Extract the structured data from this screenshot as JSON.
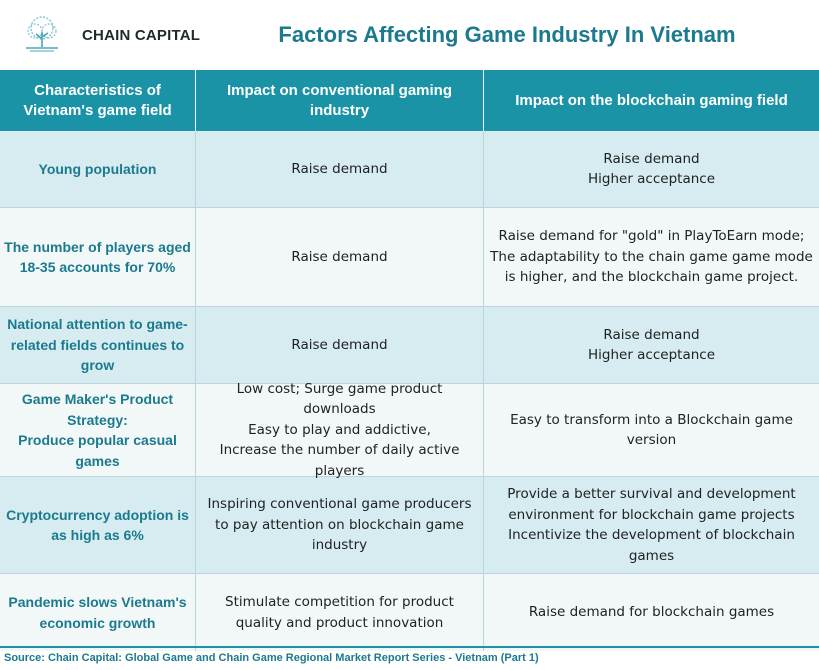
{
  "header": {
    "brand": "CHAIN CAPITAL",
    "logo_icon": "tree-logo-icon",
    "title": "Factors Affecting Game Industry In Vietnam"
  },
  "table": {
    "columns": [
      "Characteristics of Vietnam's game field",
      "Impact on conventional gaming industry",
      "Impact on the blockchain gaming field"
    ],
    "rows": [
      {
        "characteristic": "Young population",
        "conventional": "Raise demand",
        "blockchain": "Raise demand\nHigher acceptance"
      },
      {
        "characteristic": "The number of players aged 18-35 accounts for 70%",
        "conventional": "Raise demand",
        "blockchain": "Raise demand for \"gold\" in PlayToEarn mode;\nThe adaptability to the chain game game mode is higher, and the blockchain game project."
      },
      {
        "characteristic": "National attention to game-related fields continues to grow",
        "conventional": "Raise demand",
        "blockchain": "Raise demand\nHigher acceptance"
      },
      {
        "characteristic": "Game Maker's Product Strategy:\nProduce popular casual games",
        "conventional": "Low cost; Surge game product downloads\nEasy to play and addictive,\nIncrease the number of daily active players",
        "blockchain": "Easy to transform into a Blockchain game version"
      },
      {
        "characteristic": "Cryptocurrency adoption is as high as 6%",
        "conventional": "Inspiring conventional game producers to pay attention on blockchain game industry",
        "blockchain": "Provide a better survival and development environment for blockchain game projects\nIncentivize the development of blockchain games"
      },
      {
        "characteristic": "Pandemic slows Vietnam's economic growth",
        "conventional": "Stimulate competition for product quality and product innovation",
        "blockchain": "Raise demand for blockchain games"
      }
    ]
  },
  "source": "Source: Chain Capital: Global Game and Chain Game Regional Market Report Series - Vietnam (Part 1)",
  "colors": {
    "accent": "#1b93a6",
    "title_text": "#1b7a8e",
    "row_tint": "#d6ecf1",
    "row_plain": "#f2f7f8"
  }
}
